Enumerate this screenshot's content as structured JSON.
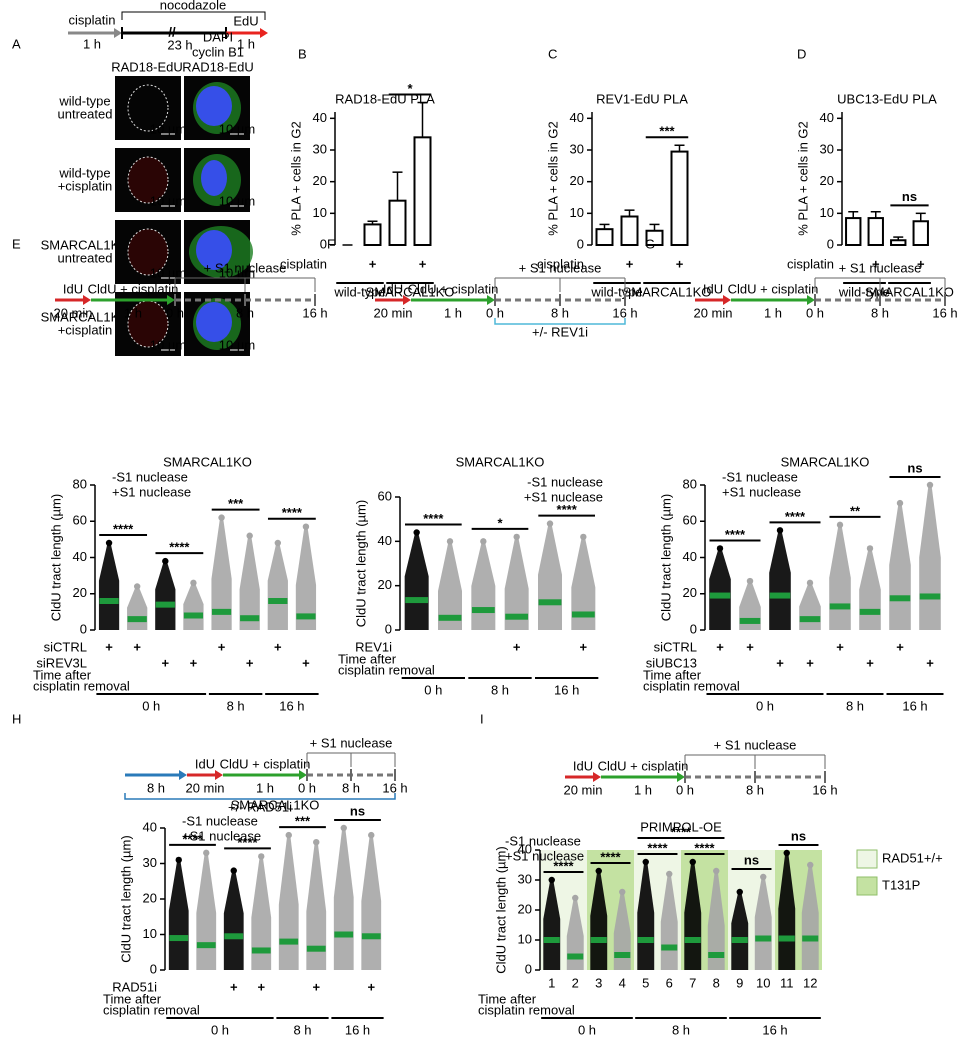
{
  "panel_a": {
    "label": "A",
    "protocol": {
      "drug": "cisplatin",
      "drug_time": "1 h",
      "arrest": "nocodazole",
      "arrest_time": "23 h",
      "pulse": "EdU",
      "pulse_time": "1 h"
    },
    "column": "RAD18-EdU",
    "merge_header": [
      "DAPI",
      "cyclin B1",
      "RAD18-EdU"
    ],
    "rows": [
      [
        "wild-type",
        "untreated"
      ],
      [
        "wild-type",
        "+cisplatin"
      ],
      [
        "SMARCAL1KO",
        "untreated"
      ],
      [
        "SMARCAL1KO",
        "+cisplatin"
      ]
    ],
    "scale_bar": "10 µm"
  },
  "chart_data": [
    {
      "type": "bar",
      "panel": "B",
      "title": "RAD18-EdU PLA",
      "ylabel": "% PLA + cells in G2",
      "ylim": [
        0,
        42
      ],
      "yticks": [
        0,
        10,
        20,
        30,
        40
      ],
      "values": [
        0,
        6.5,
        14,
        34
      ],
      "errors": [
        0,
        1,
        9,
        11
      ],
      "color": "#000000",
      "conditions": [
        {
          "name": "cisplatin",
          "marks": [
            null,
            "+",
            null,
            "+"
          ]
        }
      ],
      "groups": [
        {
          "label": "wild-type",
          "size": 2
        },
        {
          "label": "SMARCAL1KO",
          "size": 2
        }
      ],
      "significance": [
        {
          "label": "*",
          "from": 2,
          "to": 3
        }
      ]
    },
    {
      "type": "bar",
      "panel": "C",
      "title": "REV1-EdU PLA",
      "ylabel": "% PLA + cells in G2",
      "ylim": [
        0,
        42
      ],
      "yticks": [
        0,
        10,
        20,
        30,
        40
      ],
      "values": [
        5,
        9,
        4.5,
        29.5
      ],
      "errors": [
        1.5,
        2,
        2,
        2
      ],
      "color": "#000000",
      "conditions": [
        {
          "name": "cisplatin",
          "marks": [
            null,
            "+",
            null,
            "+"
          ]
        }
      ],
      "groups": [
        {
          "label": "wild-type",
          "size": 2
        },
        {
          "label": "SMARCAL1KO",
          "size": 2
        }
      ],
      "significance": [
        {
          "label": "***",
          "from": 2,
          "to": 3
        }
      ]
    },
    {
      "type": "bar",
      "panel": "D",
      "title": "UBC13-EdU PLA",
      "ylabel": "% PLA + cells in G2",
      "ylim": [
        0,
        42
      ],
      "yticks": [
        0,
        10,
        20,
        30,
        40
      ],
      "values": [
        8.5,
        8.5,
        1.5,
        7.5
      ],
      "errors": [
        2,
        2,
        1,
        2.5
      ],
      "color": "#000000",
      "conditions": [
        {
          "name": "cisplatin",
          "marks": [
            null,
            "+",
            null,
            "+"
          ]
        }
      ],
      "groups": [
        {
          "label": "wild-type",
          "size": 2
        },
        {
          "label": "SMARCAL1KO",
          "size": 2
        }
      ],
      "significance": [
        {
          "label": "ns",
          "from": 2,
          "to": 3
        }
      ]
    },
    {
      "type": "strip",
      "panel": "E",
      "title": "SMARCAL1KO",
      "ylabel": "CldU tract length (µm)",
      "ylim": [
        0,
        80
      ],
      "yticks": [
        0,
        20,
        40,
        60,
        80
      ],
      "protocol": {
        "steps": [
          {
            "label": "IdU",
            "time": "20 min",
            "color": "#d62728"
          },
          {
            "label": "CldU + cisplatin",
            "time": "1 h",
            "color": "#2ca02c"
          }
        ],
        "timepoints": [
          "0 h",
          "8 h",
          "16 h"
        ],
        "bracket": "+ S1 nuclease"
      },
      "series": [
        {
          "name": "-S1 nuclease",
          "color": "#000000",
          "values": [
            16,
            null,
            14,
            null,
            null,
            null,
            null,
            null
          ],
          "max": [
            48,
            null,
            38,
            null,
            null,
            null,
            null,
            null
          ]
        },
        {
          "name": "+S1 nuclease",
          "color": "#a6a6a6",
          "values": [
            null,
            6,
            null,
            8,
            10,
            6.5,
            16,
            7.5
          ],
          "max": [
            null,
            24,
            null,
            26,
            62,
            52,
            48,
            57
          ]
        }
      ],
      "mean_color": "#1e9a3c",
      "legend": "upper left",
      "conditions": [
        {
          "name": "siCTRL",
          "marks": [
            "+",
            "+",
            null,
            null,
            "+",
            null,
            "+",
            null
          ]
        },
        {
          "name": "siREV3L",
          "marks": [
            null,
            null,
            "+",
            "+",
            null,
            "+",
            null,
            "+"
          ]
        }
      ],
      "time_label": [
        "Time after",
        "cisplatin removal"
      ],
      "groups": [
        {
          "label": "0 h",
          "size": 4
        },
        {
          "label": "8 h",
          "size": 2
        },
        {
          "label": "16 h",
          "size": 2
        }
      ],
      "significance": [
        {
          "label": "****",
          "from": 0,
          "to": 1
        },
        {
          "label": "****",
          "from": 2,
          "to": 3
        },
        {
          "label": "***",
          "from": 4,
          "to": 5
        },
        {
          "label": "****",
          "from": 6,
          "to": 7
        }
      ]
    },
    {
      "type": "strip",
      "panel": "F",
      "title": "SMARCAL1KO",
      "ylabel": "CldU tract length (µm)",
      "ylim": [
        0,
        60
      ],
      "yticks": [
        0,
        20,
        40,
        60
      ],
      "protocol": {
        "steps": [
          {
            "label": "IdU",
            "time": "20 min",
            "color": "#d62728"
          },
          {
            "label": "CldU + cisplatin",
            "time": "1 h",
            "color": "#2ca02c"
          }
        ],
        "timepoints": [
          "0 h",
          "8 h",
          "16 h"
        ],
        "bracket": "+ S1 nuclease",
        "inhibitor": "+/- REV1i",
        "inhibitor_color": "#4fb8d8"
      },
      "series": [
        {
          "name": "-S1 nuclease",
          "color": "#000000",
          "values": [
            13.5,
            null,
            null,
            null,
            null,
            null
          ],
          "max": [
            44,
            null,
            null,
            null,
            null,
            null
          ]
        },
        {
          "name": "+S1 nuclease",
          "color": "#a6a6a6",
          "values": [
            null,
            5.5,
            9,
            6,
            12.5,
            7
          ],
          "max": [
            null,
            40,
            40,
            42,
            48,
            42
          ]
        }
      ],
      "mean_color": "#1e9a3c",
      "legend": "upper right",
      "conditions": [
        {
          "name": "REV1i",
          "marks": [
            null,
            null,
            null,
            "+",
            null,
            "+"
          ]
        }
      ],
      "time_label": [
        "Time after",
        "cisplatin removal"
      ],
      "groups": [
        {
          "label": "0 h",
          "size": 2
        },
        {
          "label": "8 h",
          "size": 2
        },
        {
          "label": "16 h",
          "size": 2
        }
      ],
      "significance": [
        {
          "label": "****",
          "from": 0,
          "to": 1
        },
        {
          "label": "*",
          "from": 2,
          "to": 3
        },
        {
          "label": "****",
          "from": 4,
          "to": 5
        }
      ]
    },
    {
      "type": "strip",
      "panel": "G",
      "title": "SMARCAL1KO",
      "ylabel": "CldU tract length (µm)",
      "ylim": [
        0,
        80
      ],
      "yticks": [
        0,
        20,
        40,
        60,
        80
      ],
      "protocol": {
        "steps": [
          {
            "label": "IdU",
            "time": "20 min",
            "color": "#d62728"
          },
          {
            "label": "CldU + cisplatin",
            "time": "1 h",
            "color": "#2ca02c"
          }
        ],
        "timepoints": [
          "0 h",
          "8 h",
          "16 h"
        ],
        "bracket": "+ S1 nuclease"
      },
      "series": [
        {
          "name": "-S1 nuclease",
          "color": "#000000",
          "values": [
            19,
            null,
            19,
            null,
            null,
            null,
            null,
            null
          ],
          "max": [
            45,
            null,
            55,
            null,
            null,
            null,
            null,
            null
          ]
        },
        {
          "name": "+S1 nuclease",
          "color": "#a6a6a6",
          "values": [
            null,
            5,
            null,
            6,
            13,
            10,
            17.5,
            18.5
          ],
          "max": [
            null,
            27,
            null,
            26,
            58,
            45,
            70,
            80
          ]
        }
      ],
      "mean_color": "#1e9a3c",
      "legend": "upper left",
      "conditions": [
        {
          "name": "siCTRL",
          "marks": [
            "+",
            "+",
            null,
            null,
            "+",
            null,
            "+",
            null
          ]
        },
        {
          "name": "siUBC13",
          "marks": [
            null,
            null,
            "+",
            "+",
            null,
            "+",
            null,
            "+"
          ]
        }
      ],
      "time_label": [
        "Time after",
        "cisplatin removal"
      ],
      "groups": [
        {
          "label": "0 h",
          "size": 4
        },
        {
          "label": "8 h",
          "size": 2
        },
        {
          "label": "16 h",
          "size": 2
        }
      ],
      "significance": [
        {
          "label": "****",
          "from": 0,
          "to": 1
        },
        {
          "label": "****",
          "from": 2,
          "to": 3
        },
        {
          "label": "**",
          "from": 4,
          "to": 5
        },
        {
          "label": "ns",
          "from": 6,
          "to": 7
        }
      ]
    },
    {
      "type": "strip",
      "panel": "H",
      "title": "SMARCAL1KO",
      "ylabel": "CldU tract length (µm)",
      "ylim": [
        0,
        40
      ],
      "yticks": [
        0,
        10,
        20,
        30,
        40
      ],
      "protocol": {
        "steps": [
          {
            "time": "8 h",
            "color": "#2a7ab9"
          },
          {
            "label": "IdU",
            "time": "20 min",
            "color": "#d62728"
          },
          {
            "label": "CldU + cisplatin",
            "time": "1 h",
            "color": "#2ca02c"
          }
        ],
        "timepoints": [
          "0 h",
          "8 h",
          "16 h"
        ],
        "bracket": "+ S1 nuclease",
        "inhibitor": "+/- RAD51i",
        "inhibitor_color": "#2a7ab9"
      },
      "series": [
        {
          "name": "-S1 nuclease",
          "color": "#000000",
          "values": [
            9,
            null,
            9.5,
            null,
            null,
            null,
            null,
            null
          ],
          "max": [
            31,
            null,
            28,
            null,
            null,
            null,
            null,
            null
          ]
        },
        {
          "name": "+S1 nuclease",
          "color": "#a6a6a6",
          "values": [
            null,
            7,
            null,
            5.5,
            8,
            6,
            10,
            9.5
          ],
          "max": [
            null,
            33,
            null,
            32,
            38,
            36,
            40,
            38
          ]
        }
      ],
      "mean_color": "#1e9a3c",
      "legend": "upper left",
      "conditions": [
        {
          "name": "RAD51i",
          "marks": [
            null,
            null,
            "+",
            "+",
            null,
            "+",
            null,
            "+"
          ]
        }
      ],
      "time_label": [
        "Time after",
        "cisplatin removal"
      ],
      "groups": [
        {
          "label": "0 h",
          "size": 4
        },
        {
          "label": "8 h",
          "size": 2
        },
        {
          "label": "16 h",
          "size": 2
        }
      ],
      "significance": [
        {
          "label": "****",
          "from": 0,
          "to": 1
        },
        {
          "label": "****",
          "from": 2,
          "to": 3
        },
        {
          "label": "***",
          "from": 4,
          "to": 5
        },
        {
          "label": "ns",
          "from": 6,
          "to": 7
        }
      ]
    },
    {
      "type": "strip",
      "panel": "I",
      "title": "PRIMPOL-OE",
      "ylabel": "CldU tract length (µm)",
      "ylim": [
        0,
        40
      ],
      "yticks": [
        0,
        10,
        20,
        30,
        40
      ],
      "protocol": {
        "steps": [
          {
            "label": "IdU",
            "time": "20 min",
            "color": "#d62728"
          },
          {
            "label": "CldU + cisplatin",
            "time": "1 h",
            "color": "#2ca02c"
          }
        ],
        "timepoints": [
          "0 h",
          "8 h",
          "16 h"
        ],
        "bracket": "+ S1 nuclease"
      },
      "categories": [
        "1",
        "2",
        "3",
        "4",
        "5",
        "6",
        "7",
        "8",
        "9",
        "10",
        "11",
        "12"
      ],
      "series": [
        {
          "name": "-S1 nuclease",
          "color": "#000000",
          "values": [
            10,
            null,
            10,
            null,
            10,
            null,
            10,
            null,
            10,
            null,
            10.5,
            null
          ],
          "max": [
            30,
            null,
            33,
            null,
            36,
            null,
            36,
            null,
            26,
            null,
            39,
            null
          ]
        },
        {
          "name": "+S1 nuclease",
          "color": "#a6a6a6",
          "values": [
            null,
            4.5,
            null,
            5,
            null,
            7.5,
            null,
            5,
            null,
            10.5,
            null,
            10.5
          ],
          "max": [
            null,
            24,
            null,
            26,
            null,
            32,
            null,
            33,
            null,
            31,
            null,
            35
          ]
        }
      ],
      "mean_color": "#1e9a3c",
      "legend": "upper left",
      "bands": [
        {
          "name": "RAD51+/+",
          "color": "#eef6e5"
        },
        {
          "name": "T131P",
          "color": "#c4e2a2"
        }
      ],
      "band_of": [
        0,
        0,
        1,
        1,
        0,
        0,
        1,
        1,
        0,
        0,
        1,
        1
      ],
      "conditions": [],
      "time_label": [
        "Time after",
        "cisplatin removal"
      ],
      "groups": [
        {
          "label": "0 h",
          "size": 4
        },
        {
          "label": "8 h",
          "size": 4
        },
        {
          "label": "16 h",
          "size": 4
        }
      ],
      "significance": [
        {
          "label": "****",
          "from": 0,
          "to": 1
        },
        {
          "label": "****",
          "from": 2,
          "to": 3
        },
        {
          "label": "****",
          "from": 4,
          "to": 5
        },
        {
          "label": "****",
          "from": 6,
          "to": 7
        },
        {
          "label": "****",
          "from": 4,
          "to": 7
        },
        {
          "label": "ns",
          "from": 8,
          "to": 9
        },
        {
          "label": "ns",
          "from": 10,
          "to": 11
        }
      ]
    }
  ]
}
